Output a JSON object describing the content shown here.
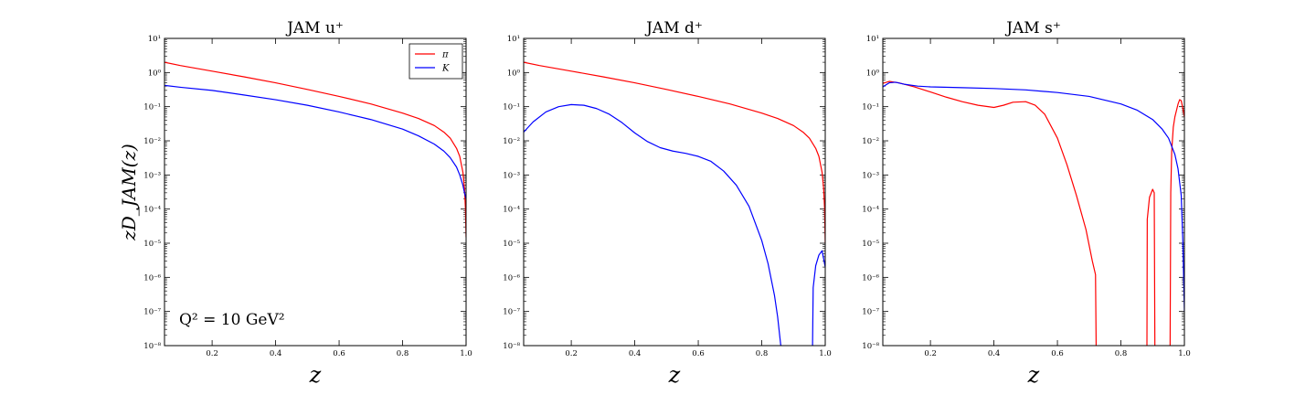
{
  "figure": {
    "ylabel": "zD_JAM(z)",
    "annotation": "Q² = 10 GeV²"
  },
  "chart_data": [
    {
      "type": "line",
      "title": "JAM u⁺",
      "xlabel": "z",
      "ylabel": "zD_JAM(z)",
      "yscale": "log",
      "xlim": [
        0.05,
        1.0
      ],
      "ylim": [
        1e-08,
        10
      ],
      "x_ticks": [
        "0.2",
        "0.4",
        "0.6",
        "0.8",
        "1.0"
      ],
      "y_ticks": [
        "10⁻⁸",
        "10⁻⁷",
        "10⁻⁶",
        "10⁻⁵",
        "10⁻⁴",
        "10⁻³",
        "10⁻²",
        "10⁻¹",
        "10⁰",
        "10¹"
      ],
      "legend": {
        "position": "top-right",
        "entries": [
          "π",
          "K"
        ]
      },
      "annotation": "Q² = 10 GeV²",
      "series": [
        {
          "name": "π",
          "color": "#ff0000",
          "x": [
            0.05,
            0.1,
            0.2,
            0.3,
            0.4,
            0.5,
            0.6,
            0.7,
            0.8,
            0.85,
            0.9,
            0.93,
            0.95,
            0.97,
            0.98,
            0.99,
            0.995,
            0.998,
            1.0
          ],
          "y": [
            2.0,
            1.6,
            1.1,
            0.75,
            0.5,
            0.32,
            0.2,
            0.12,
            0.065,
            0.045,
            0.028,
            0.018,
            0.012,
            0.006,
            0.0035,
            0.0012,
            0.0004,
            0.0001,
            1.5e-05
          ]
        },
        {
          "name": "K",
          "color": "#0000ff",
          "x": [
            0.05,
            0.1,
            0.2,
            0.3,
            0.4,
            0.5,
            0.6,
            0.7,
            0.8,
            0.85,
            0.9,
            0.93,
            0.95,
            0.97,
            0.98,
            0.99,
            0.995,
            1.0
          ],
          "y": [
            0.42,
            0.37,
            0.3,
            0.22,
            0.16,
            0.11,
            0.07,
            0.042,
            0.022,
            0.014,
            0.008,
            0.005,
            0.0032,
            0.0017,
            0.001,
            0.0005,
            0.0003,
            0.0002
          ]
        }
      ]
    },
    {
      "type": "line",
      "title": "JAM d⁺",
      "xlabel": "z",
      "ylabel": "",
      "yscale": "log",
      "xlim": [
        0.05,
        1.0
      ],
      "ylim": [
        1e-08,
        10
      ],
      "x_ticks": [
        "0.2",
        "0.4",
        "0.6",
        "0.8",
        "1.0"
      ],
      "y_ticks": [
        "10⁻⁸",
        "10⁻⁷",
        "10⁻⁶",
        "10⁻⁵",
        "10⁻⁴",
        "10⁻³",
        "10⁻²",
        "10⁻¹",
        "10⁰",
        "10¹"
      ],
      "series": [
        {
          "name": "π",
          "color": "#ff0000",
          "x": [
            0.05,
            0.1,
            0.2,
            0.3,
            0.4,
            0.5,
            0.6,
            0.7,
            0.8,
            0.85,
            0.9,
            0.93,
            0.95,
            0.97,
            0.98,
            0.99,
            0.995,
            0.998,
            1.0
          ],
          "y": [
            2.0,
            1.6,
            1.1,
            0.75,
            0.5,
            0.32,
            0.2,
            0.12,
            0.065,
            0.045,
            0.028,
            0.018,
            0.012,
            0.006,
            0.0035,
            0.0012,
            0.0004,
            0.0001,
            1e-05
          ]
        },
        {
          "name": "K",
          "color": "#0000ff",
          "segments": [
            {
              "x": [
                0.05,
                0.08,
                0.12,
                0.16,
                0.2,
                0.24,
                0.28,
                0.32,
                0.36,
                0.4,
                0.44,
                0.48,
                0.52,
                0.56,
                0.6,
                0.64,
                0.68,
                0.72,
                0.76,
                0.8,
                0.82,
                0.84,
                0.85,
                0.86,
                0.863
              ],
              "y": [
                0.018,
                0.036,
                0.07,
                0.1,
                0.115,
                0.11,
                0.088,
                0.06,
                0.034,
                0.017,
                0.0095,
                0.0063,
                0.005,
                0.0043,
                0.0035,
                0.0025,
                0.0013,
                0.0005,
                0.00012,
                1.2e-05,
                2.5e-06,
                3e-07,
                7e-08,
                1e-08,
                1e-08
              ]
            },
            {
              "x": [
                0.96,
                0.962,
                0.97,
                0.98,
                0.99,
                1.0
              ],
              "y": [
                1e-08,
                5e-07,
                2.2e-06,
                4.5e-06,
                6e-06,
                2e-06
              ]
            }
          ]
        }
      ]
    },
    {
      "type": "line",
      "title": "JAM s⁺",
      "xlabel": "z",
      "ylabel": "",
      "yscale": "log",
      "xlim": [
        0.05,
        1.0
      ],
      "ylim": [
        1e-08,
        10
      ],
      "x_ticks": [
        "0.2",
        "0.4",
        "0.6",
        "0.8",
        "1.0"
      ],
      "y_ticks": [
        "10⁻⁸",
        "10⁻⁷",
        "10⁻⁶",
        "10⁻⁵",
        "10⁻⁴",
        "10⁻³",
        "10⁻²",
        "10⁻¹",
        "10⁰",
        "10¹"
      ],
      "series": [
        {
          "name": "π",
          "color": "#ff0000",
          "segments": [
            {
              "x": [
                0.05,
                0.07,
                0.1,
                0.15,
                0.2,
                0.25,
                0.3,
                0.35,
                0.4,
                0.43,
                0.46,
                0.5,
                0.53,
                0.56,
                0.6,
                0.63,
                0.66,
                0.69,
                0.71,
                0.72,
                0.722
              ],
              "y": [
                0.48,
                0.55,
                0.5,
                0.38,
                0.27,
                0.19,
                0.14,
                0.11,
                0.095,
                0.11,
                0.135,
                0.14,
                0.11,
                0.06,
                0.012,
                0.002,
                0.00025,
                2.5e-05,
                3e-06,
                1.2e-06,
                1e-08
              ]
            },
            {
              "x": [
                0.882,
                0.883,
                0.89,
                0.9,
                0.905,
                0.907
              ],
              "y": [
                1e-08,
                5e-05,
                0.00022,
                0.00038,
                0.0003,
                1e-08
              ]
            },
            {
              "x": [
                0.955,
                0.957,
                0.96,
                0.965,
                0.97,
                0.98,
                0.985,
                0.99,
                0.995,
                1.0
              ],
              "y": [
                1e-08,
                0.0003,
                0.005,
                0.025,
                0.05,
                0.12,
                0.16,
                0.15,
                0.09,
                0.05
              ]
            }
          ]
        },
        {
          "name": "K",
          "color": "#0000ff",
          "x": [
            0.05,
            0.07,
            0.09,
            0.12,
            0.16,
            0.2,
            0.3,
            0.4,
            0.5,
            0.6,
            0.7,
            0.8,
            0.85,
            0.9,
            0.93,
            0.95,
            0.97,
            0.98,
            0.99,
            0.995,
            1.0
          ],
          "y": [
            0.38,
            0.5,
            0.52,
            0.45,
            0.4,
            0.38,
            0.36,
            0.34,
            0.31,
            0.26,
            0.2,
            0.12,
            0.08,
            0.042,
            0.022,
            0.012,
            0.004,
            0.0015,
            0.00025,
            1.2e-05,
            1e-07
          ]
        }
      ]
    }
  ]
}
